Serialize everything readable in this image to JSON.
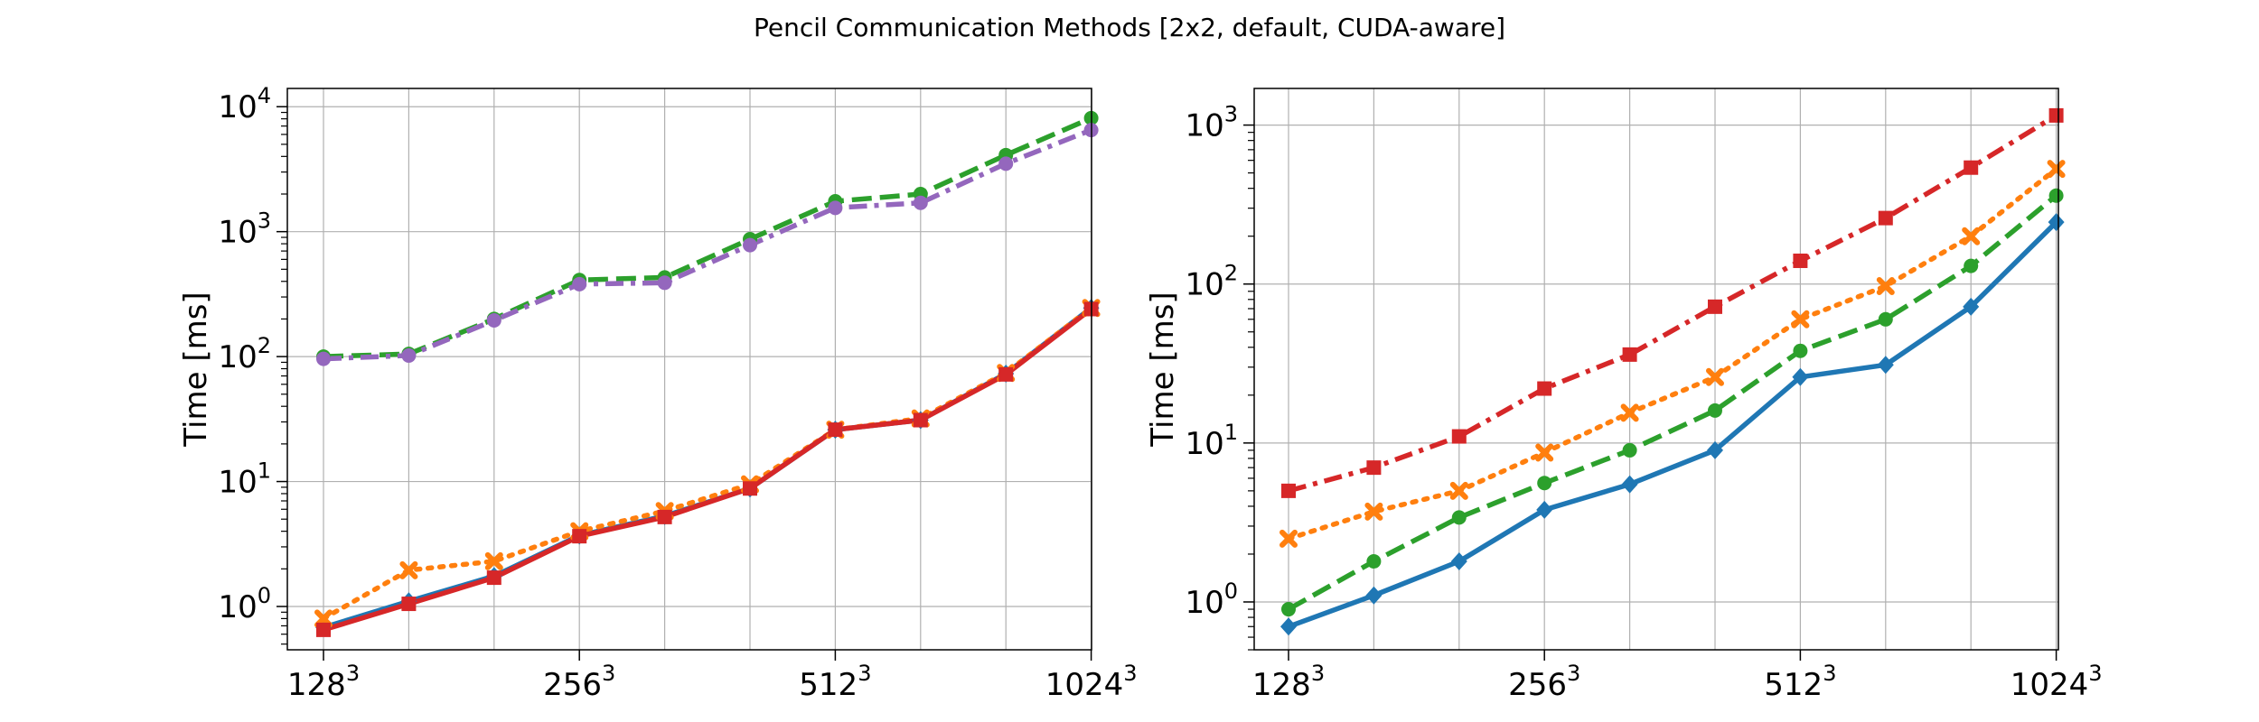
{
  "figure": {
    "suptitle": "Pencil Communication Methods [2x2, default, CUDA-aware]"
  },
  "chart_data": [
    {
      "type": "line",
      "title": "",
      "xlabel": "",
      "ylabel": "Time [ms]",
      "yscale": "log",
      "ylim": [
        0.45,
        14000
      ],
      "grid": true,
      "legend": "none",
      "x_ticks": [
        {
          "label": "128",
          "sup": "3",
          "index": 0
        },
        {
          "label": "256",
          "sup": "3",
          "index": 3
        },
        {
          "label": "512",
          "sup": "3",
          "index": 6
        },
        {
          "label": "1024",
          "sup": "3",
          "index": 9
        }
      ],
      "y_ticks": [
        {
          "base": "10",
          "exp": "0",
          "value": 1
        },
        {
          "base": "10",
          "exp": "1",
          "value": 10
        },
        {
          "base": "10",
          "exp": "2",
          "value": 100
        },
        {
          "base": "10",
          "exp": "3",
          "value": 1000
        },
        {
          "base": "10",
          "exp": "4",
          "value": 10000
        }
      ],
      "series": [
        {
          "color": "#2ca02c",
          "dash": "dashed",
          "marker": "circle",
          "values": [
            100,
            105,
            200,
            410,
            430,
            870,
            1750,
            2000,
            4100,
            8100
          ]
        },
        {
          "color": "#9467bd",
          "dash": "dashdot",
          "marker": "circle",
          "values": [
            96,
            102,
            195,
            380,
            390,
            780,
            1550,
            1700,
            3500,
            6500
          ]
        },
        {
          "color": "#1f77b4",
          "dash": "solid",
          "marker": "diamond",
          "values": [
            0.68,
            1.1,
            1.75,
            3.7,
            5.3,
            8.8,
            26,
            31,
            73,
            245
          ]
        },
        {
          "color": "#ff7f0e",
          "dash": "dotted",
          "marker": "x",
          "values": [
            0.8,
            1.95,
            2.3,
            4.0,
            5.8,
            9.5,
            26,
            32,
            74,
            245
          ]
        },
        {
          "color": "#d62728",
          "dash": "solid",
          "marker": "square",
          "values": [
            0.65,
            1.05,
            1.7,
            3.65,
            5.2,
            8.8,
            26,
            31,
            72,
            240
          ]
        }
      ]
    },
    {
      "type": "line",
      "title": "",
      "xlabel": "",
      "ylabel": "Time [ms]",
      "yscale": "log",
      "ylim": [
        0.5,
        1700
      ],
      "grid": true,
      "legend": "none",
      "x_ticks": [
        {
          "label": "128",
          "sup": "3",
          "index": 0
        },
        {
          "label": "256",
          "sup": "3",
          "index": 3
        },
        {
          "label": "512",
          "sup": "3",
          "index": 6
        },
        {
          "label": "1024",
          "sup": "3",
          "index": 9
        }
      ],
      "y_ticks": [
        {
          "base": "10",
          "exp": "0",
          "value": 1
        },
        {
          "base": "10",
          "exp": "1",
          "value": 10
        },
        {
          "base": "10",
          "exp": "2",
          "value": 100
        },
        {
          "base": "10",
          "exp": "3",
          "value": 1000
        }
      ],
      "series": [
        {
          "color": "#d62728",
          "dash": "dashdot",
          "marker": "square",
          "values": [
            5.0,
            7.0,
            11,
            22,
            36,
            72,
            140,
            260,
            540,
            1150
          ]
        },
        {
          "color": "#ff7f0e",
          "dash": "dotted",
          "marker": "x",
          "values": [
            2.5,
            3.7,
            5.0,
            8.7,
            15.5,
            26,
            60,
            97,
            200,
            530
          ]
        },
        {
          "color": "#2ca02c",
          "dash": "dashed",
          "marker": "circle",
          "values": [
            0.9,
            1.8,
            3.4,
            5.6,
            9.0,
            16,
            38,
            60,
            130,
            360
          ]
        },
        {
          "color": "#1f77b4",
          "dash": "solid",
          "marker": "diamond",
          "values": [
            0.7,
            1.1,
            1.8,
            3.8,
            5.5,
            9.0,
            26,
            31,
            72,
            245
          ]
        }
      ]
    }
  ]
}
